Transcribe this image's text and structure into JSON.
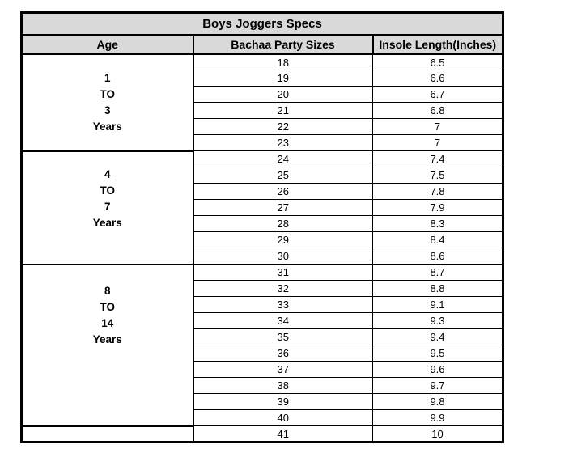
{
  "page": {
    "background": "#ffffff"
  },
  "table": {
    "title": "Boys Joggers Specs",
    "columns": {
      "age": "Age",
      "sizes": "Bachaa Party Sizes",
      "insole": "Insole Length(Inches)"
    },
    "colors": {
      "header_bg": "#d9d9d9",
      "border": "#000000",
      "text": "#000000",
      "row_bg": "#ffffff"
    },
    "groups": [
      {
        "age_label": "1 TO 3 Years",
        "age_lines": [
          "1",
          "TO",
          "3",
          "Years"
        ],
        "rows": [
          {
            "size": "18",
            "insole": "6.5"
          },
          {
            "size": "19",
            "insole": "6.6"
          },
          {
            "size": "20",
            "insole": "6.7"
          },
          {
            "size": "21",
            "insole": "6.8"
          },
          {
            "size": "22",
            "insole": "7"
          },
          {
            "size": "23",
            "insole": "7"
          }
        ]
      },
      {
        "age_label": "4 TO 7 Years",
        "age_lines": [
          "4",
          "TO",
          "7",
          "Years"
        ],
        "rows": [
          {
            "size": "24",
            "insole": "7.4"
          },
          {
            "size": "25",
            "insole": "7.5"
          },
          {
            "size": "26",
            "insole": "7.8"
          },
          {
            "size": "27",
            "insole": "7.9"
          },
          {
            "size": "28",
            "insole": "8.3"
          },
          {
            "size": "29",
            "insole": "8.4"
          },
          {
            "size": "30",
            "insole": "8.6"
          }
        ]
      },
      {
        "age_label": "8 TO 14 Years",
        "age_lines": [
          "8",
          "TO",
          "14",
          "Years"
        ],
        "rows": [
          {
            "size": "31",
            "insole": "8.7"
          },
          {
            "size": "32",
            "insole": "8.8"
          },
          {
            "size": "33",
            "insole": "9.1"
          },
          {
            "size": "34",
            "insole": "9.3"
          },
          {
            "size": "35",
            "insole": "9.4"
          },
          {
            "size": "36",
            "insole": "9.5"
          },
          {
            "size": "37",
            "insole": "9.6"
          },
          {
            "size": "38",
            "insole": "9.7"
          },
          {
            "size": "39",
            "insole": "9.8"
          },
          {
            "size": "40",
            "insole": "9.9"
          }
        ]
      },
      {
        "age_label": "",
        "age_lines": [],
        "rows": [
          {
            "size": "41",
            "insole": "10"
          }
        ]
      }
    ]
  }
}
